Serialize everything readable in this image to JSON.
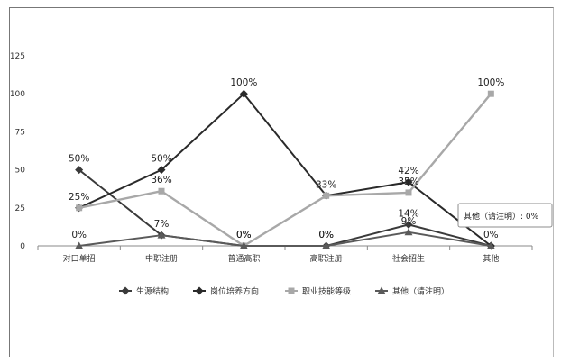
{
  "chart_data": {
    "type": "line",
    "categories": [
      "对口单招",
      "中职注册",
      "普通高职",
      "高职注册",
      "社会招生",
      "其他"
    ],
    "ylim": [
      0,
      125
    ],
    "yticks": [
      0,
      25,
      50,
      75,
      100,
      125
    ],
    "grid": false,
    "legend_position": "bottom",
    "series": [
      {
        "name": "生源结构",
        "marker": "diamond",
        "color": "#3a3a3a",
        "values": [
          50,
          7,
          0,
          0,
          14,
          0
        ],
        "labels": [
          "50%",
          "7%",
          "0%",
          "0%",
          "14%",
          "0%"
        ]
      },
      {
        "name": "岗位培养方向",
        "marker": "diamond",
        "color": "#2a2a2a",
        "values": [
          25,
          50,
          100,
          33,
          42,
          0
        ],
        "labels": [
          "25%",
          "50%",
          "100%",
          "33%",
          "42%",
          ""
        ]
      },
      {
        "name": "职业技能等级",
        "marker": "square",
        "color": "#a8a8a8",
        "values": [
          25,
          36,
          0,
          33,
          35,
          100
        ],
        "labels": [
          "",
          "36%",
          "",
          "",
          "35%",
          "100%"
        ]
      },
      {
        "name": "其他（请注明）",
        "marker": "triangle",
        "color": "#5a5a5a",
        "values": [
          0,
          7,
          0,
          0,
          9,
          0
        ],
        "labels": [
          "0%",
          "",
          "0%",
          "0%",
          "9%",
          ""
        ]
      }
    ],
    "tooltip": {
      "series": "其他（请注明）",
      "category_index": 5,
      "text": "其他（请注明）: 0%"
    }
  }
}
